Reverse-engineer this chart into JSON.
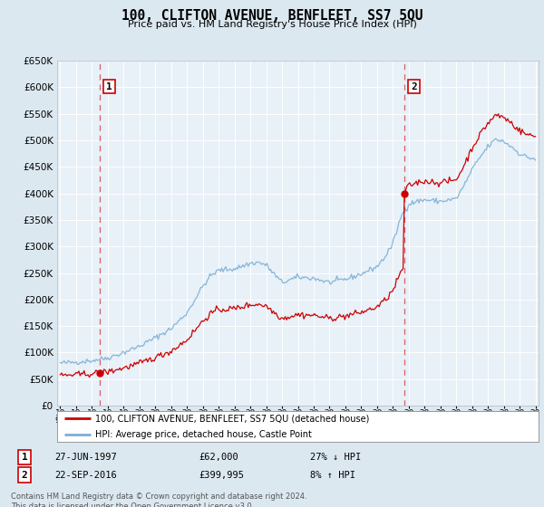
{
  "title": "100, CLIFTON AVENUE, BENFLEET, SS7 5QU",
  "subtitle": "Price paid vs. HM Land Registry's House Price Index (HPI)",
  "legend_line1": "100, CLIFTON AVENUE, BENFLEET, SS7 5QU (detached house)",
  "legend_line2": "HPI: Average price, detached house, Castle Point",
  "annotation1_date": "27-JUN-1997",
  "annotation1_price": "£62,000",
  "annotation1_hpi": "27% ↓ HPI",
  "annotation2_date": "22-SEP-2016",
  "annotation2_price": "£399,995",
  "annotation2_hpi": "8% ↑ HPI",
  "footer": "Contains HM Land Registry data © Crown copyright and database right 2024.\nThis data is licensed under the Open Government Licence v3.0.",
  "price_color": "#cc0000",
  "hpi_color": "#7bafd4",
  "bg_color": "#dce8f0",
  "plot_bg_color": "#e8f0f8",
  "grid_color": "#ffffff",
  "ylim": [
    0,
    650000
  ],
  "sale1_x": 1997.49,
  "sale1_y": 62000,
  "sale2_x": 2016.73,
  "sale2_y": 399995,
  "xmin": 1994.8,
  "xmax": 2025.2
}
